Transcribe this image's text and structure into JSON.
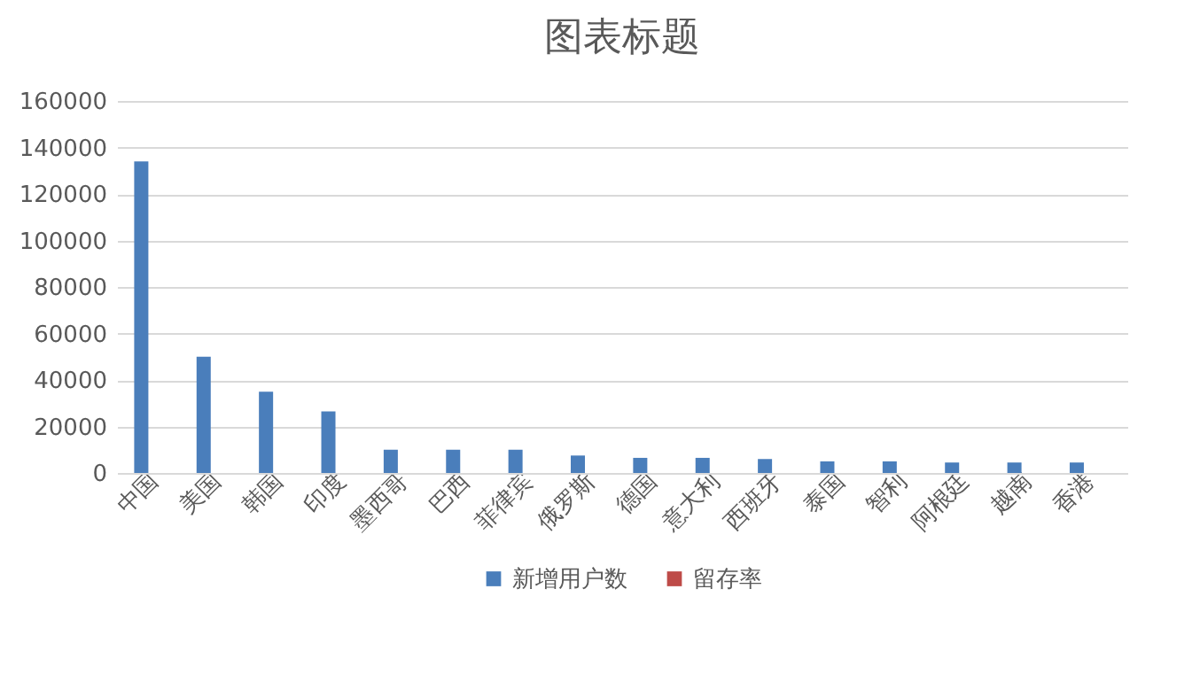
{
  "chart_data": {
    "type": "bar",
    "title": "图表标题",
    "categories": [
      "中国",
      "美国",
      "韩国",
      "印度",
      "墨西哥",
      "巴西",
      "菲律宾",
      "俄罗斯",
      "德国",
      "意大利",
      "西班牙",
      "泰国",
      "智利",
      "阿根廷",
      "越南",
      "香港"
    ],
    "series": [
      {
        "name": "新增用户数",
        "color": "#4a7ebb",
        "values": [
          134000,
          50000,
          35000,
          26500,
          10000,
          10000,
          10000,
          7500,
          6500,
          6500,
          6000,
          5000,
          5000,
          4500,
          4500,
          4500
        ]
      },
      {
        "name": "留存率",
        "color": "#be4b48",
        "values": [
          null,
          null,
          null,
          null,
          null,
          null,
          null,
          null,
          null,
          null,
          null,
          null,
          null,
          null,
          null,
          null
        ]
      }
    ],
    "ylim": [
      0,
      160000
    ],
    "yticks": [
      0,
      20000,
      40000,
      60000,
      80000,
      100000,
      120000,
      140000,
      160000
    ],
    "grid": "y",
    "legend": "bottom"
  }
}
